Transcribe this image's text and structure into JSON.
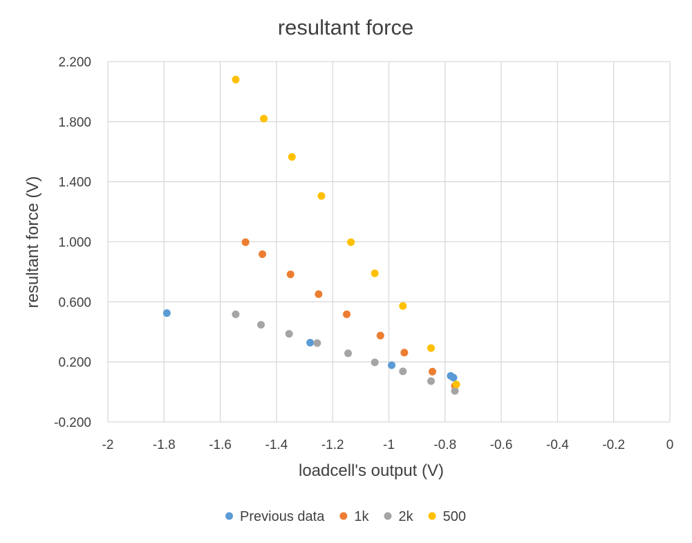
{
  "chart_data": {
    "type": "scatter",
    "title": "resultant force",
    "xlabel": "loadcell's output (V)",
    "ylabel": "resultant force (V)",
    "xlim": [
      -2,
      0
    ],
    "ylim": [
      -0.2,
      2.2
    ],
    "x_ticks": [
      -2,
      -1.8,
      -1.6,
      -1.4,
      -1.2,
      -1,
      -0.8,
      -0.6,
      -0.4,
      -0.2,
      0
    ],
    "x_tick_labels": [
      "-2",
      "-1.8",
      "-1.6",
      "-1.4",
      "-1.2",
      "-1",
      "-0.8",
      "-0.6",
      "-0.4",
      "-0.2",
      "0"
    ],
    "y_ticks": [
      -0.2,
      0.2,
      0.6,
      1.0,
      1.4,
      1.8,
      2.2
    ],
    "y_tick_labels": [
      "-0.200",
      "0.200",
      "0.600",
      "1.000",
      "1.400",
      "1.800",
      "2.200"
    ],
    "grid": true,
    "legend_position": "bottom",
    "series": [
      {
        "name": "Previous data",
        "color": "#5B9BD5",
        "points": [
          [
            -1.79,
            0.525
          ],
          [
            -1.28,
            0.328
          ],
          [
            -0.99,
            0.178
          ],
          [
            -0.78,
            0.107
          ],
          [
            -0.77,
            0.095
          ]
        ]
      },
      {
        "name": "1k",
        "color": "#ED7D31",
        "points": [
          [
            -1.51,
            0.997
          ],
          [
            -1.45,
            0.917
          ],
          [
            -1.35,
            0.783
          ],
          [
            -1.25,
            0.651
          ],
          [
            -1.15,
            0.517
          ],
          [
            -1.03,
            0.375
          ],
          [
            -0.945,
            0.262
          ],
          [
            -0.845,
            0.135
          ],
          [
            -0.765,
            0.04
          ]
        ]
      },
      {
        "name": "2k",
        "color": "#A5A5A5",
        "points": [
          [
            -1.545,
            0.517
          ],
          [
            -1.455,
            0.447
          ],
          [
            -1.355,
            0.387
          ],
          [
            -1.255,
            0.325
          ],
          [
            -1.145,
            0.257
          ],
          [
            -1.05,
            0.197
          ],
          [
            -0.95,
            0.137
          ],
          [
            -0.85,
            0.072
          ],
          [
            -0.765,
            0.007
          ]
        ]
      },
      {
        "name": "500",
        "color": "#FFC000",
        "points": [
          [
            -1.545,
            2.08
          ],
          [
            -1.445,
            1.82
          ],
          [
            -1.345,
            1.565
          ],
          [
            -1.24,
            1.305
          ],
          [
            -1.135,
            0.997
          ],
          [
            -1.05,
            0.79
          ],
          [
            -0.95,
            0.572
          ],
          [
            -0.85,
            0.292
          ],
          [
            -0.76,
            0.05
          ]
        ]
      }
    ]
  }
}
